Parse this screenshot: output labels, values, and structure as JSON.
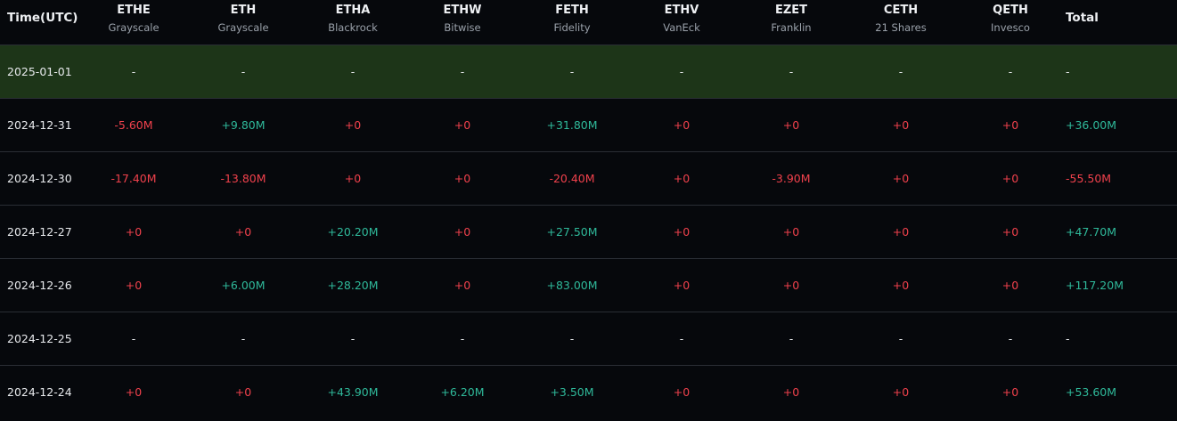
{
  "header": {
    "time_label": "Time(UTC)",
    "total_label": "Total",
    "funds": [
      {
        "ticker": "ETHE",
        "issuer": "Grayscale"
      },
      {
        "ticker": "ETH",
        "issuer": "Grayscale"
      },
      {
        "ticker": "ETHA",
        "issuer": "Blackrock"
      },
      {
        "ticker": "ETHW",
        "issuer": "Bitwise"
      },
      {
        "ticker": "FETH",
        "issuer": "Fidelity"
      },
      {
        "ticker": "ETHV",
        "issuer": "VanEck"
      },
      {
        "ticker": "EZET",
        "issuer": "Franklin"
      },
      {
        "ticker": "CETH",
        "issuer": "21 Shares"
      },
      {
        "ticker": "QETH",
        "issuer": "Invesco"
      }
    ]
  },
  "colors": {
    "positive": "#2fb99a",
    "negative": "#f0414c",
    "highlight_row": "#1d3518",
    "background": "#06080c"
  },
  "rows": [
    {
      "date": "2025-01-01",
      "values": [
        "-",
        "-",
        "-",
        "-",
        "-",
        "-",
        "-",
        "-",
        "-"
      ],
      "total": "-"
    },
    {
      "date": "2024-12-31",
      "values": [
        "-5.60M",
        "+9.80M",
        "+0",
        "+0",
        "+31.80M",
        "+0",
        "+0",
        "+0",
        "+0"
      ],
      "total": "+36.00M"
    },
    {
      "date": "2024-12-30",
      "values": [
        "-17.40M",
        "-13.80M",
        "+0",
        "+0",
        "-20.40M",
        "+0",
        "-3.90M",
        "+0",
        "+0"
      ],
      "total": "-55.50M"
    },
    {
      "date": "2024-12-27",
      "values": [
        "+0",
        "+0",
        "+20.20M",
        "+0",
        "+27.50M",
        "+0",
        "+0",
        "+0",
        "+0"
      ],
      "total": "+47.70M"
    },
    {
      "date": "2024-12-26",
      "values": [
        "+0",
        "+6.00M",
        "+28.20M",
        "+0",
        "+83.00M",
        "+0",
        "+0",
        "+0",
        "+0"
      ],
      "total": "+117.20M"
    },
    {
      "date": "2024-12-25",
      "values": [
        "-",
        "-",
        "-",
        "-",
        "-",
        "-",
        "-",
        "-",
        "-"
      ],
      "total": "-"
    },
    {
      "date": "2024-12-24",
      "values": [
        "+0",
        "+0",
        "+43.90M",
        "+6.20M",
        "+3.50M",
        "+0",
        "+0",
        "+0",
        "+0"
      ],
      "total": "+53.60M"
    }
  ]
}
